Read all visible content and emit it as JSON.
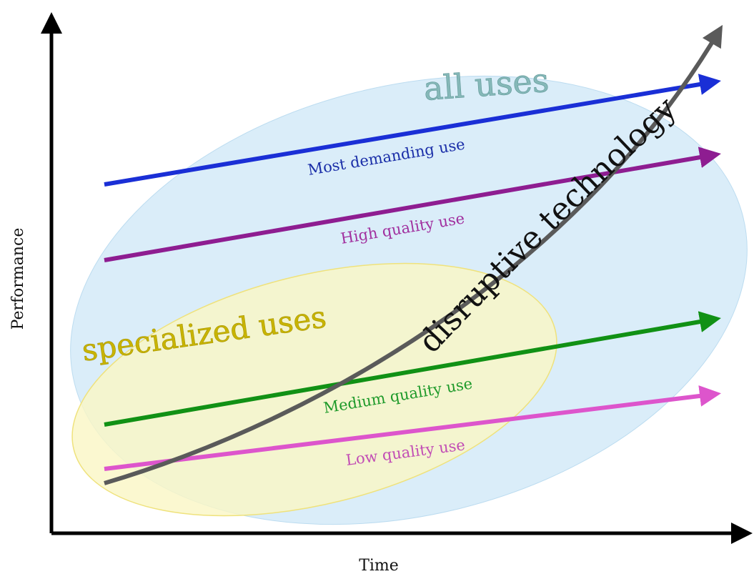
{
  "axes": {
    "x_label": "Time",
    "y_label": "Performance"
  },
  "regions": {
    "all_uses": "all uses",
    "specialized_uses": "specialized uses"
  },
  "trajectories": [
    {
      "label": "Most demanding use",
      "color": "#1a2fd6",
      "label_color": "#1a2ea8"
    },
    {
      "label": "High quality use",
      "color": "#8e1d91",
      "label_color": "#a1309f"
    },
    {
      "label": "Medium quality use",
      "color": "#119115",
      "label_color": "#1e9a2a"
    },
    {
      "label": "Low quality use",
      "color": "#dd55cc",
      "label_color": "#c24db5"
    }
  ],
  "disruptive_technology": {
    "label": "disruptive technology",
    "color": "#5a5a5a"
  },
  "colors": {
    "all_uses_fill": "#d4eaf8",
    "specialized_uses_fill": "#faf6c4",
    "axis": "#000000"
  }
}
